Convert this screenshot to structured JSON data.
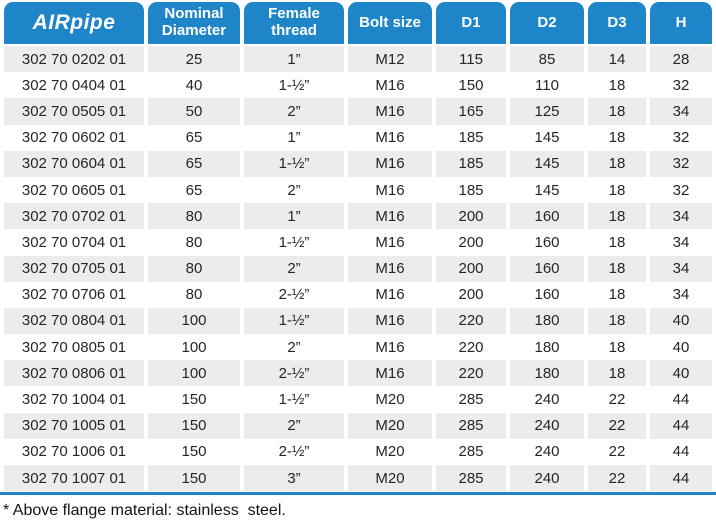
{
  "theme": {
    "accent_blue": "#1E86C8",
    "stripe_gray": "#ECECEC",
    "header_text": "#FFFFFF",
    "body_text": "#262626"
  },
  "logo": {
    "air": "AIR",
    "pipe": "pipe"
  },
  "table": {
    "column_keys": [
      "part_number",
      "nominal_diameter",
      "female_thread",
      "bolt_size",
      "d1",
      "d2",
      "d3",
      "h"
    ],
    "columns": [
      {
        "key": "nominal_diameter",
        "label": "Nominal\nDiameter"
      },
      {
        "key": "female_thread",
        "label": "Female\nthread"
      },
      {
        "key": "bolt_size",
        "label": "Bolt size"
      },
      {
        "key": "d1",
        "label": "D1"
      },
      {
        "key": "d2",
        "label": "D2"
      },
      {
        "key": "d3",
        "label": "D3"
      },
      {
        "key": "h",
        "label": "H"
      }
    ],
    "rows": [
      [
        "302 70 0202 01",
        "25",
        "1”",
        "M12",
        "115",
        "85",
        "14",
        "28"
      ],
      [
        "302 70 0404 01",
        "40",
        "1-½”",
        "M16",
        "150",
        "110",
        "18",
        "32"
      ],
      [
        "302 70 0505 01",
        "50",
        "2”",
        "M16",
        "165",
        "125",
        "18",
        "34"
      ],
      [
        "302 70 0602 01",
        "65",
        "1”",
        "M16",
        "185",
        "145",
        "18",
        "32"
      ],
      [
        "302 70 0604 01",
        "65",
        "1-½”",
        "M16",
        "185",
        "145",
        "18",
        "32"
      ],
      [
        "302 70 0605 01",
        "65",
        "2”",
        "M16",
        "185",
        "145",
        "18",
        "32"
      ],
      [
        "302 70 0702 01",
        "80",
        "1”",
        "M16",
        "200",
        "160",
        "18",
        "34"
      ],
      [
        "302 70 0704 01",
        "80",
        "1-½”",
        "M16",
        "200",
        "160",
        "18",
        "34"
      ],
      [
        "302 70 0705 01",
        "80",
        "2”",
        "M16",
        "200",
        "160",
        "18",
        "34"
      ],
      [
        "302 70 0706 01",
        "80",
        "2-½”",
        "M16",
        "200",
        "160",
        "18",
        "34"
      ],
      [
        "302 70 0804 01",
        "100",
        "1-½”",
        "M16",
        "220",
        "180",
        "18",
        "40"
      ],
      [
        "302 70 0805 01",
        "100",
        "2”",
        "M16",
        "220",
        "180",
        "18",
        "40"
      ],
      [
        "302 70 0806 01",
        "100",
        "2-½”",
        "M16",
        "220",
        "180",
        "18",
        "40"
      ],
      [
        "302 70 1004 01",
        "150",
        "1-½”",
        "M20",
        "285",
        "240",
        "22",
        "44"
      ],
      [
        "302 70 1005 01",
        "150",
        "2”",
        "M20",
        "285",
        "240",
        "22",
        "44"
      ],
      [
        "302 70 1006 01",
        "150",
        "2-½”",
        "M20",
        "285",
        "240",
        "22",
        "44"
      ],
      [
        "302 70 1007 01",
        "150",
        "3”",
        "M20",
        "285",
        "240",
        "22",
        "44"
      ]
    ]
  },
  "footnote": "* Above flange material: stainless  steel."
}
